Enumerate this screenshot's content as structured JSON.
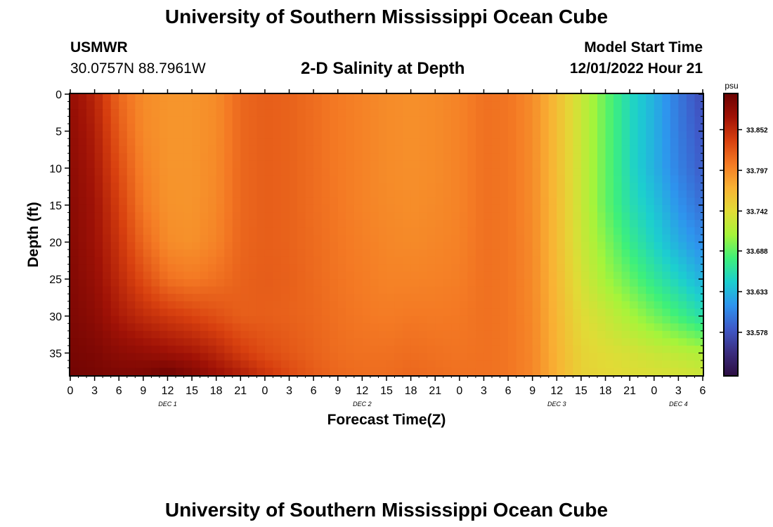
{
  "header": {
    "title": "University of Southern Mississippi Ocean Cube",
    "station": "USMWR",
    "coords": "30.0757N  88.7961W",
    "plot_title": "2-D Salinity at Depth",
    "start_label": "Model Start Time",
    "start_value": "12/01/2022 Hour 21"
  },
  "footer": {
    "title": "University of Southern Mississippi Ocean Cube"
  },
  "colors": {
    "stops": [
      "#2d0e42",
      "#3b2e7f",
      "#3f59c8",
      "#2e94ee",
      "#1ccfcf",
      "#3ef07a",
      "#a6f43a",
      "#e1db36",
      "#f9b234",
      "#f47a24",
      "#d8400f",
      "#a01206",
      "#6a0202"
    ],
    "low_value": 33.52,
    "high_value": 33.9
  },
  "chart_data": {
    "type": "heatmap",
    "xlabel": "Forecast Time(Z)",
    "ylabel": "Depth (ft)",
    "colorbar_unit": "psu",
    "colorbar_ticks": [
      "33.852",
      "33.797",
      "33.742",
      "33.688",
      "33.633",
      "33.578"
    ],
    "x_ticks": [
      "0",
      "3",
      "6",
      "9",
      "12",
      "15",
      "18",
      "21",
      "0",
      "3",
      "6",
      "9",
      "12",
      "15",
      "18",
      "21",
      "0",
      "3",
      "6",
      "9",
      "12",
      "15",
      "18",
      "21",
      "0",
      "3",
      "6"
    ],
    "day_labels": [
      {
        "label": "DEC 1",
        "hour": 12
      },
      {
        "label": "DEC 2",
        "hour": 36
      },
      {
        "label": "DEC 3",
        "hour": 60
      },
      {
        "label": "DEC 4",
        "hour": 75
      }
    ],
    "y_ticks": [
      "0",
      "5",
      "10",
      "15",
      "20",
      "25",
      "30",
      "35"
    ],
    "xlim": [
      0,
      78
    ],
    "ylim": [
      0,
      38
    ],
    "depths": [
      0,
      5,
      10,
      15,
      20,
      25,
      30,
      35,
      38
    ],
    "hours": [
      0,
      3,
      6,
      9,
      12,
      15,
      18,
      21,
      24,
      27,
      30,
      33,
      36,
      39,
      42,
      45,
      48,
      51,
      54,
      57,
      60,
      63,
      66,
      69,
      72,
      75,
      78
    ],
    "salinity": [
      [
        33.875,
        33.855,
        33.815,
        33.795,
        33.79,
        33.79,
        33.795,
        33.815,
        33.82,
        33.818,
        33.812,
        33.805,
        33.8,
        33.795,
        33.793,
        33.795,
        33.8,
        33.81,
        33.808,
        33.795,
        33.765,
        33.728,
        33.69,
        33.655,
        33.63,
        33.6,
        33.575
      ],
      [
        33.878,
        33.86,
        33.822,
        33.796,
        33.79,
        33.79,
        33.795,
        33.815,
        33.82,
        33.818,
        33.812,
        33.805,
        33.8,
        33.795,
        33.793,
        33.795,
        33.8,
        33.81,
        33.808,
        33.795,
        33.765,
        33.728,
        33.69,
        33.655,
        33.63,
        33.602,
        33.58
      ],
      [
        33.88,
        33.864,
        33.83,
        33.8,
        33.79,
        33.79,
        33.796,
        33.815,
        33.82,
        33.818,
        33.812,
        33.805,
        33.8,
        33.795,
        33.793,
        33.795,
        33.8,
        33.81,
        33.808,
        33.795,
        33.765,
        33.728,
        33.69,
        33.655,
        33.63,
        33.605,
        33.585
      ],
      [
        33.882,
        33.868,
        33.838,
        33.805,
        33.791,
        33.79,
        33.797,
        33.815,
        33.82,
        33.818,
        33.812,
        33.806,
        33.8,
        33.796,
        33.794,
        33.796,
        33.8,
        33.81,
        33.808,
        33.795,
        33.766,
        33.728,
        33.69,
        33.66,
        33.64,
        33.615,
        33.595
      ],
      [
        33.884,
        33.87,
        33.845,
        33.815,
        33.795,
        33.792,
        33.8,
        33.816,
        33.82,
        33.818,
        33.813,
        33.807,
        33.802,
        33.798,
        33.796,
        33.798,
        33.801,
        33.81,
        33.808,
        33.796,
        33.766,
        33.73,
        33.7,
        33.672,
        33.65,
        33.628,
        33.61
      ],
      [
        33.886,
        33.874,
        33.852,
        33.83,
        33.81,
        33.805,
        33.81,
        33.818,
        33.821,
        33.819,
        33.814,
        33.808,
        33.804,
        33.8,
        33.8,
        33.801,
        33.803,
        33.81,
        33.808,
        33.796,
        33.768,
        33.735,
        33.71,
        33.69,
        33.668,
        33.65,
        33.63
      ],
      [
        33.888,
        33.88,
        33.862,
        33.85,
        33.842,
        33.835,
        33.828,
        33.82,
        33.82,
        33.818,
        33.815,
        33.81,
        33.806,
        33.804,
        33.806,
        33.805,
        33.806,
        33.81,
        33.808,
        33.797,
        33.77,
        33.742,
        33.728,
        33.712,
        33.695,
        33.678,
        33.66
      ],
      [
        33.892,
        33.888,
        33.88,
        33.875,
        33.87,
        33.865,
        33.855,
        33.84,
        33.83,
        33.824,
        33.818,
        33.812,
        33.81,
        33.81,
        33.812,
        33.81,
        33.808,
        33.81,
        33.808,
        33.798,
        33.772,
        33.748,
        33.74,
        33.735,
        33.728,
        33.722,
        33.715
      ],
      [
        33.895,
        33.892,
        33.888,
        33.89,
        33.898,
        33.886,
        33.872,
        33.86,
        33.845,
        33.832,
        33.822,
        33.815,
        33.812,
        33.812,
        33.815,
        33.812,
        33.81,
        33.81,
        33.808,
        33.798,
        33.773,
        33.75,
        33.745,
        33.74,
        33.738,
        33.735,
        33.73
      ]
    ]
  }
}
